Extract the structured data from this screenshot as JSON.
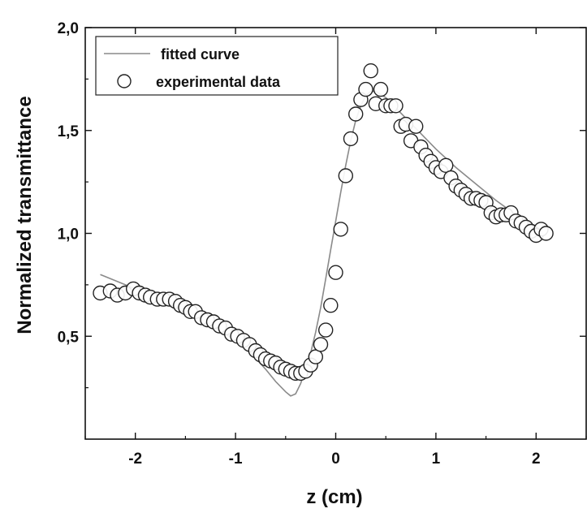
{
  "chart_data": {
    "type": "scatter",
    "xlabel": "z (cm)",
    "ylabel": "Normalized transmittance",
    "xlim": [
      -2.5,
      2.5
    ],
    "ylim": [
      0.0,
      2.0
    ],
    "x_ticks": [
      {
        "value": -2,
        "label": "-2"
      },
      {
        "value": -1,
        "label": "-1"
      },
      {
        "value": 0,
        "label": "0"
      },
      {
        "value": 1,
        "label": "1"
      },
      {
        "value": 2,
        "label": "2"
      }
    ],
    "y_ticks": [
      {
        "value": 0.5,
        "label": "0,5"
      },
      {
        "value": 1.0,
        "label": "1,0"
      },
      {
        "value": 1.5,
        "label": "1,5"
      },
      {
        "value": 2.0,
        "label": "2,0"
      }
    ],
    "legend": {
      "position": "top-left",
      "entries": [
        {
          "label": "fitted curve",
          "marker": "line"
        },
        {
          "label": "experimental data",
          "marker": "open-circle"
        }
      ]
    },
    "series": [
      {
        "name": "fitted curve",
        "style": "line",
        "color": "#8a8a8a",
        "x": [
          -2.35,
          -2.2,
          -2.0,
          -1.8,
          -1.6,
          -1.4,
          -1.2,
          -1.0,
          -0.85,
          -0.7,
          -0.6,
          -0.5,
          -0.45,
          -0.4,
          -0.35,
          -0.3,
          -0.25,
          -0.2,
          -0.15,
          -0.1,
          -0.05,
          0.0,
          0.05,
          0.1,
          0.15,
          0.2,
          0.25,
          0.3,
          0.35,
          0.4,
          0.5,
          0.6,
          0.8,
          1.0,
          1.2,
          1.4,
          1.6,
          1.8,
          2.0,
          2.1
        ],
        "y": [
          0.8,
          0.77,
          0.73,
          0.69,
          0.65,
          0.6,
          0.54,
          0.48,
          0.42,
          0.34,
          0.28,
          0.23,
          0.21,
          0.22,
          0.27,
          0.34,
          0.42,
          0.52,
          0.64,
          0.78,
          0.92,
          1.06,
          1.2,
          1.33,
          1.45,
          1.55,
          1.62,
          1.67,
          1.69,
          1.69,
          1.66,
          1.61,
          1.51,
          1.41,
          1.32,
          1.24,
          1.16,
          1.09,
          1.03,
          1.01
        ]
      },
      {
        "name": "experimental data",
        "style": "open-circle",
        "color": "#222222",
        "x": [
          -2.35,
          -2.25,
          -2.18,
          -2.1,
          -2.02,
          -1.96,
          -1.9,
          -1.85,
          -1.78,
          -1.72,
          -1.66,
          -1.6,
          -1.55,
          -1.5,
          -1.45,
          -1.4,
          -1.34,
          -1.28,
          -1.22,
          -1.16,
          -1.1,
          -1.04,
          -0.98,
          -0.92,
          -0.86,
          -0.8,
          -0.75,
          -0.7,
          -0.65,
          -0.6,
          -0.55,
          -0.5,
          -0.45,
          -0.4,
          -0.35,
          -0.3,
          -0.25,
          -0.2,
          -0.15,
          -0.1,
          -0.05,
          0.0,
          0.05,
          0.1,
          0.15,
          0.2,
          0.25,
          0.3,
          0.35,
          0.4,
          0.45,
          0.5,
          0.55,
          0.6,
          0.65,
          0.7,
          0.75,
          0.8,
          0.85,
          0.9,
          0.95,
          1.0,
          1.05,
          1.1,
          1.15,
          1.2,
          1.25,
          1.3,
          1.35,
          1.4,
          1.45,
          1.5,
          1.55,
          1.6,
          1.65,
          1.7,
          1.75,
          1.8,
          1.85,
          1.9,
          1.95,
          2.0,
          2.05,
          2.1
        ],
        "y": [
          0.71,
          0.72,
          0.7,
          0.71,
          0.73,
          0.71,
          0.7,
          0.69,
          0.68,
          0.68,
          0.68,
          0.67,
          0.65,
          0.64,
          0.62,
          0.62,
          0.59,
          0.58,
          0.57,
          0.55,
          0.54,
          0.51,
          0.5,
          0.48,
          0.46,
          0.43,
          0.41,
          0.39,
          0.38,
          0.37,
          0.35,
          0.34,
          0.33,
          0.32,
          0.32,
          0.33,
          0.36,
          0.4,
          0.46,
          0.53,
          0.65,
          0.81,
          1.02,
          1.28,
          1.46,
          1.58,
          1.65,
          1.7,
          1.79,
          1.63,
          1.7,
          1.62,
          1.62,
          1.62,
          1.52,
          1.53,
          1.45,
          1.52,
          1.42,
          1.38,
          1.35,
          1.32,
          1.3,
          1.33,
          1.27,
          1.23,
          1.21,
          1.19,
          1.17,
          1.17,
          1.16,
          1.15,
          1.1,
          1.08,
          1.09,
          1.09,
          1.1,
          1.06,
          1.05,
          1.03,
          1.01,
          0.99,
          1.02,
          1.0
        ]
      }
    ]
  }
}
